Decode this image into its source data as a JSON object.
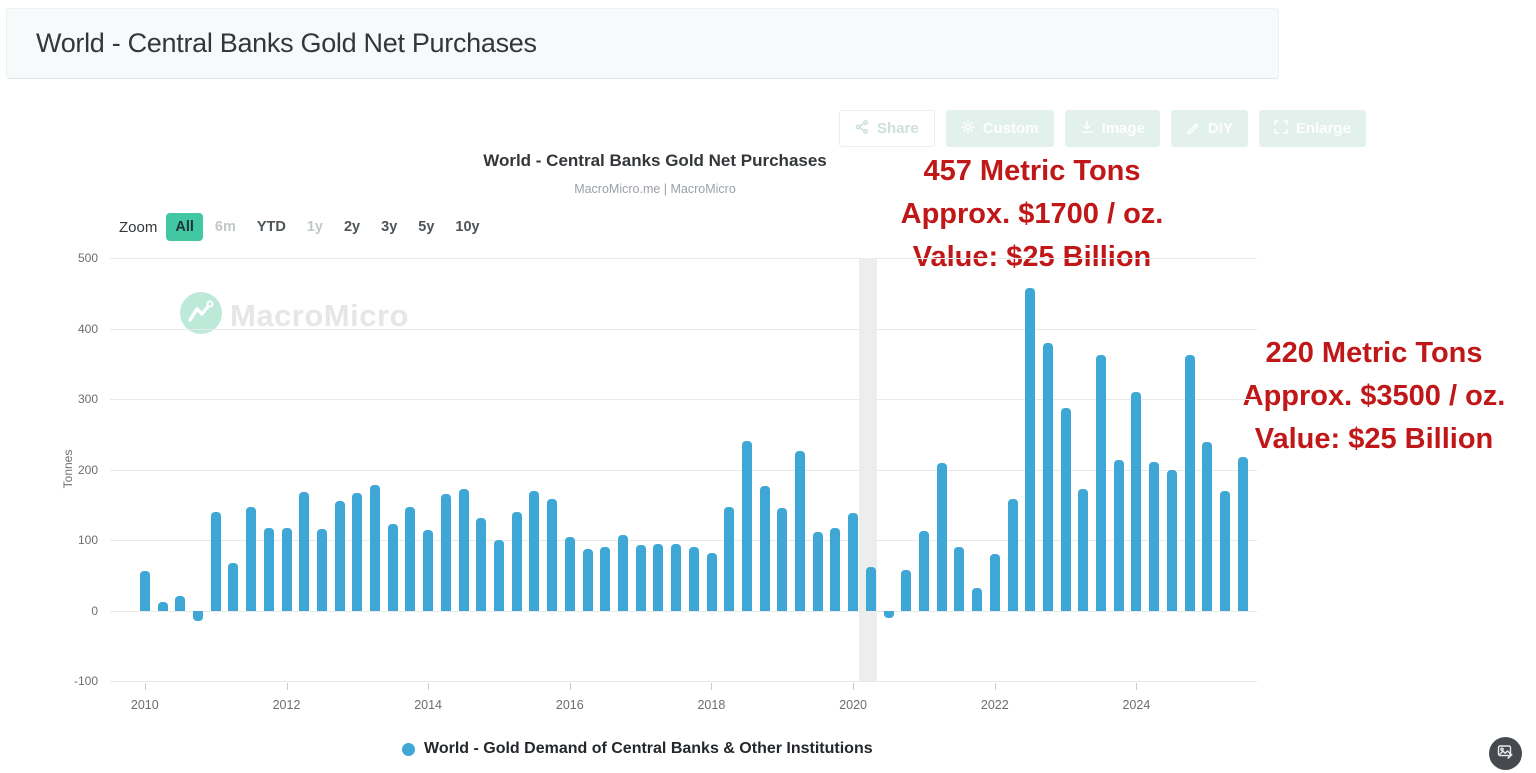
{
  "page": {
    "title": "World - Central Banks Gold Net Purchases"
  },
  "toolbar": {
    "buttons": [
      {
        "label": "Share",
        "icon": "share-icon",
        "style": "ghost"
      },
      {
        "label": "Custom",
        "icon": "gear-icon",
        "style": "solid"
      },
      {
        "label": "Image",
        "icon": "download-icon",
        "style": "solid"
      },
      {
        "label": "DIY",
        "icon": "pencil-icon",
        "style": "solid"
      },
      {
        "label": "Enlarge",
        "icon": "expand-icon",
        "style": "solid"
      }
    ]
  },
  "chart": {
    "title": "World - Central Banks Gold Net Purchases",
    "subtitle": "MacroMicro.me | MacroMicro",
    "watermark": "MacroMicro",
    "zoom_label": "Zoom",
    "zoom_options": [
      {
        "label": "All",
        "state": "selected"
      },
      {
        "label": "6m",
        "state": "disabled"
      },
      {
        "label": "YTD",
        "state": "normal"
      },
      {
        "label": "1y",
        "state": "disabled"
      },
      {
        "label": "2y",
        "state": "normal"
      },
      {
        "label": "3y",
        "state": "normal"
      },
      {
        "label": "5y",
        "state": "normal"
      },
      {
        "label": "10y",
        "state": "normal"
      }
    ],
    "legend": {
      "label": "World - Gold Demand of Central Banks & Other Institutions",
      "marker_color": "#3fa7d6"
    }
  },
  "annotations": [
    {
      "lines": [
        "457 Metric Tons",
        "Approx. $1700 / oz.",
        "Value: $25 Billion"
      ]
    },
    {
      "lines": [
        "220 Metric Tons",
        "Approx. $3500 / oz.",
        "Value: $25 Billion"
      ]
    }
  ],
  "chart_data": {
    "type": "bar",
    "title": "World - Central Banks Gold Net Purchases",
    "subtitle": "MacroMicro.me | MacroMicro",
    "series_name": "World - Gold Demand of Central Banks & Other Institutions",
    "xlabel": "",
    "ylabel": "Tonnes",
    "ylim": [
      -100,
      500
    ],
    "y_ticks": [
      500,
      400,
      300,
      200,
      100,
      0,
      -100
    ],
    "x_tick_years": [
      "2010",
      "2012",
      "2014",
      "2016",
      "2018",
      "2020",
      "2022",
      "2024"
    ],
    "grid": "horizontal",
    "legend_position": "bottom",
    "bar_color": "#3fa7d6",
    "plot_band": {
      "from_quarter": "2020 Q1",
      "to_quarter": "2020 Q2",
      "color": "#ededed",
      "note": "2020 recession band"
    },
    "quarters": [
      "2010 Q1",
      "2010 Q2",
      "2010 Q3",
      "2010 Q4",
      "2011 Q1",
      "2011 Q2",
      "2011 Q3",
      "2011 Q4",
      "2012 Q1",
      "2012 Q2",
      "2012 Q3",
      "2012 Q4",
      "2013 Q1",
      "2013 Q2",
      "2013 Q3",
      "2013 Q4",
      "2014 Q1",
      "2014 Q2",
      "2014 Q3",
      "2014 Q4",
      "2015 Q1",
      "2015 Q2",
      "2015 Q3",
      "2015 Q4",
      "2016 Q1",
      "2016 Q2",
      "2016 Q3",
      "2016 Q4",
      "2017 Q1",
      "2017 Q2",
      "2017 Q3",
      "2017 Q4",
      "2018 Q1",
      "2018 Q2",
      "2018 Q3",
      "2018 Q4",
      "2019 Q1",
      "2019 Q2",
      "2019 Q3",
      "2019 Q4",
      "2020 Q1",
      "2020 Q2",
      "2020 Q3",
      "2020 Q4",
      "2021 Q1",
      "2021 Q2",
      "2021 Q3",
      "2021 Q4",
      "2022 Q1",
      "2022 Q2",
      "2022 Q3",
      "2022 Q4",
      "2023 Q1",
      "2023 Q2",
      "2023 Q3",
      "2023 Q4",
      "2024 Q1",
      "2024 Q2",
      "2024 Q3",
      "2024 Q4",
      "2025 Q1",
      "2025 Q2",
      "2025 Q3"
    ],
    "values": [
      57,
      12,
      21,
      -15,
      140,
      67,
      147,
      118,
      118,
      168,
      116,
      155,
      167,
      178,
      123,
      147,
      115,
      166,
      173,
      132,
      100,
      140,
      170,
      159,
      105,
      88,
      90,
      107,
      93,
      94,
      95,
      91,
      82,
      147,
      240,
      177,
      145,
      226,
      111,
      118,
      139,
      62,
      -10,
      58,
      113,
      210,
      90,
      32,
      81,
      159,
      457,
      380,
      288,
      173,
      363,
      214,
      310,
      211,
      199,
      362,
      239,
      170,
      218
    ]
  },
  "colors": {
    "annotation_red": "#c01718",
    "bar_blue": "#3fa7d6",
    "zoom_selected_bg": "#41c8a2",
    "watermark_teal": "#bce9d8",
    "header_bg": "#f7fafb",
    "badge_bg": "#46494e"
  }
}
